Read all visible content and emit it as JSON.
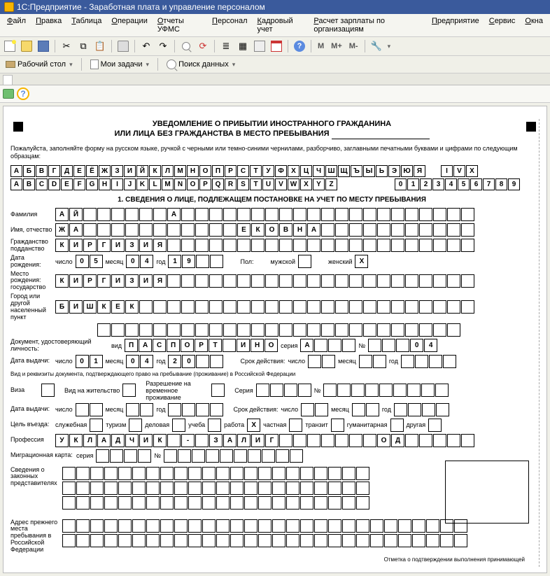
{
  "app": {
    "title": "1С:Предприятие - Заработная плата и управление персоналом"
  },
  "menu": [
    "Файл",
    "Правка",
    "Таблица",
    "Операции",
    "Отчеты УФМС",
    "Персонал",
    "Кадровый учет",
    "Расчет зарплаты по организациям",
    "Предприятие",
    "Сервис",
    "Окна"
  ],
  "toolbar_m": [
    "M",
    "M+",
    "M-"
  ],
  "toolbar2": {
    "desk": "Рабочий стол",
    "tasks": "Мои задачи",
    "search": "Поиск данных"
  },
  "form": {
    "title1": "УВЕДОМЛЕНИЕ О ПРИБЫТИИ ИНОСТРАННОГО ГРАЖДАНИНА",
    "title2": "ИЛИ ЛИЦА БЕЗ ГРАЖДАНСТВА В МЕСТО ПРЕБЫВАНИЯ",
    "instr": "Пожалуйста, заполняйте форму на русском языке, ручкой с черными или темно-синими чернилами, разборчиво, заглавными печатными буквами и цифрами по следующим образцам:",
    "alpha_ru": [
      "А",
      "Б",
      "В",
      "Г",
      "Д",
      "Е",
      "Ё",
      "Ж",
      "З",
      "И",
      "Й",
      "К",
      "Л",
      "М",
      "Н",
      "О",
      "П",
      "Р",
      "С",
      "Т",
      "У",
      "Ф",
      "Х",
      "Ц",
      "Ч",
      "Ш",
      "Щ",
      "Ъ",
      "Ы",
      "Ь",
      "Э",
      "Ю",
      "Я"
    ],
    "alpha_rom": [
      "I",
      "V",
      "X"
    ],
    "alpha_en": [
      "A",
      "B",
      "C",
      "D",
      "E",
      "F",
      "G",
      "H",
      "I",
      "J",
      "K",
      "L",
      "M",
      "N",
      "O",
      "P",
      "Q",
      "R",
      "S",
      "T",
      "U",
      "V",
      "W",
      "X",
      "Y",
      "Z"
    ],
    "digits": [
      "0",
      "1",
      "2",
      "3",
      "4",
      "5",
      "6",
      "7",
      "8",
      "9"
    ],
    "section1": "1. СВЕДЕНИЯ О ЛИЦЕ, ПОДЛЕЖАЩЕМ ПОСТАНОВКЕ НА УЧЕТ ПО МЕСТУ ПРЕБЫВАНИЯ",
    "labels": {
      "surname": "Фамилия",
      "name": "Имя, отчество",
      "citizenship": "Гражданство подданство",
      "dob": "Дата рождения:",
      "num": "число",
      "mon": "месяц",
      "yr": "год",
      "sex": "Пол:",
      "male": "мужской",
      "female": "женский",
      "pob": "Место рождения: государство",
      "city": "Город или другой населенный пункт",
      "doc": "Документ, удостоверяющий личность:",
      "kind": "вид",
      "series": "серия",
      "no": "№",
      "issued": "Дата выдачи:",
      "valid": "Срок действия:",
      "right": "Вид и реквизиты документа, подтверждающего право на пребывание (проживание) в Российской Федерации",
      "visa": "Виза",
      "residence": "Вид на жительство",
      "permit": "Разрешение на временное проживание",
      "ser": "Серия",
      "num2": "№",
      "purpose": "Цель въезда:",
      "p_off": "служебная",
      "p_tour": "туризм",
      "p_bus": "деловая",
      "p_edu": "учеба",
      "p_work": "работа",
      "p_priv": "частная",
      "p_trans": "транзит",
      "p_hum": "гуманитарная",
      "p_other": "другая",
      "prof": "Профессия",
      "migcard": "Миграционная карта:",
      "legal": "Сведения о законных представителях",
      "prevaddr": "Адрес прежнего места пребывания в Российской Федерации",
      "footer": "Отметка о подтверждении выполнения принимающей"
    },
    "values": {
      "surname": [
        "А",
        "Й",
        "",
        "",
        "",
        "",
        "",
        "",
        "А"
      ],
      "name": [
        "Ж",
        "А",
        "",
        "",
        "",
        "",
        "",
        "",
        "",
        "",
        "",
        "",
        "",
        "Е",
        "К",
        "О",
        "В",
        "Н",
        "А"
      ],
      "citizenship": [
        "К",
        "И",
        "Р",
        "Г",
        "И",
        "З",
        "И",
        "Я"
      ],
      "dob_d": [
        "0",
        "5"
      ],
      "dob_m": [
        "0",
        "4"
      ],
      "dob_y": [
        "1",
        "9",
        "",
        ""
      ],
      "sex_f": "X",
      "pob": [
        "К",
        "И",
        "Р",
        "Г",
        "И",
        "З",
        "И",
        "Я"
      ],
      "city": [
        "Б",
        "И",
        "Ш",
        "К",
        "Е",
        "К"
      ],
      "doc_kind": [
        "П",
        "А",
        "С",
        "П",
        "О",
        "Р",
        "Т",
        " ",
        "И",
        "Н",
        "О"
      ],
      "doc_ser": [
        "А"
      ],
      "doc_no": [
        "",
        "",
        "",
        "0",
        "4"
      ],
      "iss_d": [
        "0",
        "1"
      ],
      "iss_m": [
        "0",
        "4"
      ],
      "iss_y": [
        "2",
        "0",
        "",
        ""
      ],
      "purpose_sel": "X",
      "prof": [
        "У",
        "К",
        "Л",
        "А",
        "Д",
        "Ч",
        "И",
        "К",
        "",
        "-",
        "",
        "З",
        "А",
        "Л",
        "И",
        "Г",
        "",
        "",
        "",
        "",
        "",
        "",
        "",
        "О",
        "Д"
      ]
    }
  }
}
